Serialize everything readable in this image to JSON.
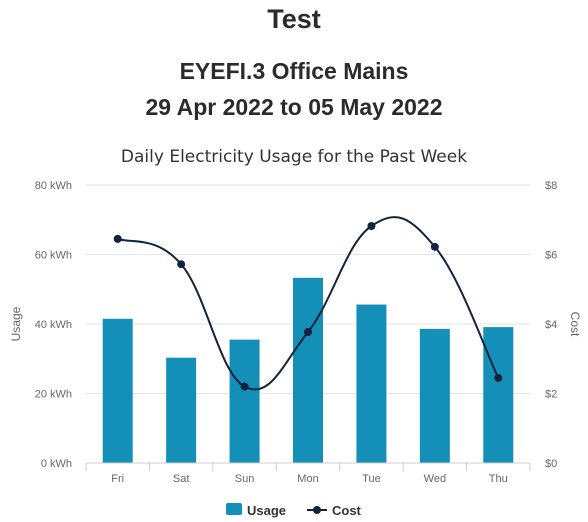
{
  "header": {
    "title": "Test",
    "subtitle": "EYEFI.3 Office Mains",
    "date_range": "29 Apr 2022 to 05 May 2022"
  },
  "colors": {
    "usage_bar": "#1490b8",
    "cost_line": "#12233f",
    "grid": "#e6e6e6"
  },
  "chart_data": {
    "type": "bar",
    "title": "Daily Electricity Usage for the Past Week",
    "categories": [
      "Fri",
      "Sat",
      "Sun",
      "Mon",
      "Tue",
      "Wed",
      "Thu"
    ],
    "series": [
      {
        "name": "Usage",
        "type": "bar",
        "axis": "left",
        "values": [
          41.5,
          30.3,
          35.5,
          53.3,
          45.6,
          38.6,
          39.1
        ]
      },
      {
        "name": "Cost",
        "type": "line",
        "axis": "right",
        "values": [
          6.45,
          5.72,
          2.2,
          3.77,
          6.82,
          6.22,
          2.45
        ]
      }
    ],
    "y_left": {
      "label": "Usage",
      "ylim": [
        0,
        80
      ],
      "ticks": [
        "0 kWh",
        "20 kWh",
        "40 kWh",
        "60 kWh",
        "80 kWh"
      ]
    },
    "y_right": {
      "label": "Cost",
      "ylim": [
        0,
        8
      ],
      "ticks": [
        "$0",
        "$2",
        "$4",
        "$6",
        "$8"
      ]
    },
    "grid": true,
    "legend": {
      "position": "bottom",
      "items": [
        "Usage",
        "Cost"
      ]
    }
  }
}
